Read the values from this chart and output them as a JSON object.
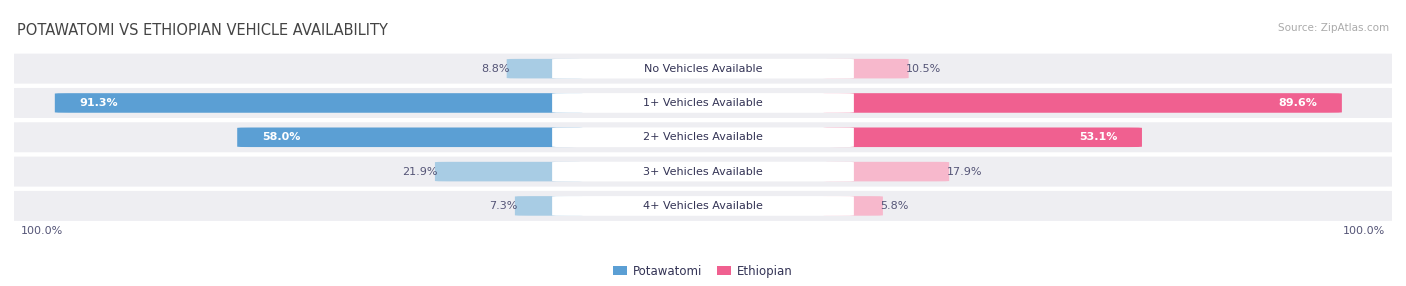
{
  "title": "POTAWATOMI VS ETHIOPIAN VEHICLE AVAILABILITY",
  "source": "Source: ZipAtlas.com",
  "categories": [
    "No Vehicles Available",
    "1+ Vehicles Available",
    "2+ Vehicles Available",
    "3+ Vehicles Available",
    "4+ Vehicles Available"
  ],
  "potawatomi": [
    8.8,
    91.3,
    58.0,
    21.9,
    7.3
  ],
  "ethiopian": [
    10.5,
    89.6,
    53.1,
    17.9,
    5.8
  ],
  "potawatomi_color_light": "#a8cce4",
  "potawatomi_color_dark": "#5b9fd4",
  "ethiopian_color_light": "#f7b8cc",
  "ethiopian_color_dark": "#f06090",
  "row_bg_color": "#eeeeF2",
  "label_bg_color": "#ffffff",
  "title_color": "#444444",
  "text_color": "#555577",
  "source_color": "#aaaaaa",
  "max_value": 100.0,
  "figsize": [
    14.06,
    2.86
  ],
  "dpi": 100
}
